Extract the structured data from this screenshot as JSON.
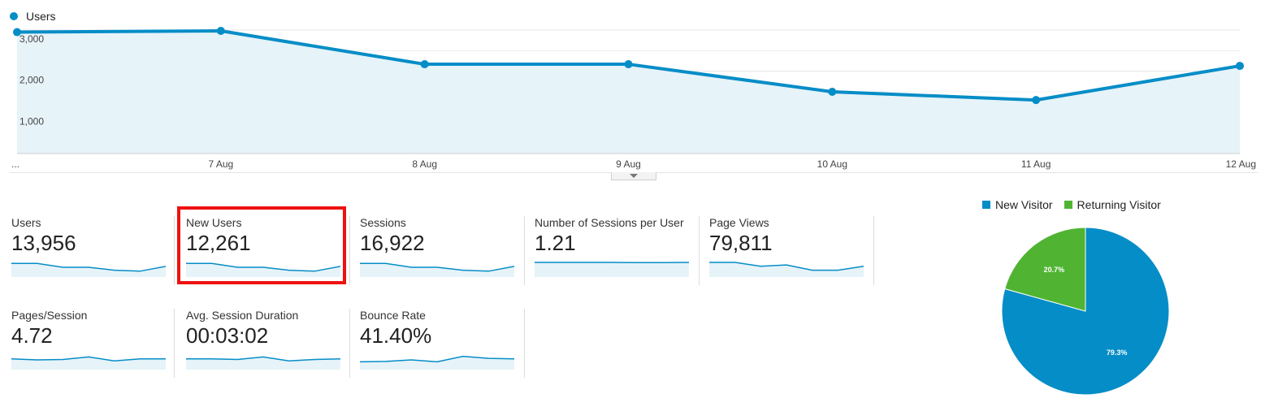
{
  "legend": {
    "label": "Users",
    "color": "#058dc7"
  },
  "chart_data": {
    "type": "area",
    "series": [
      {
        "name": "Users",
        "values": [
          2950,
          2980,
          2170,
          2170,
          1500,
          1300,
          2130
        ]
      }
    ],
    "x_labels": [
      "...",
      "7 Aug",
      "8 Aug",
      "9 Aug",
      "10 Aug",
      "11 Aug",
      "12 Aug"
    ],
    "y_ticks": [
      "3,000",
      "2,000",
      "1,000"
    ],
    "y_tick_values": [
      3000,
      2000,
      1000
    ],
    "ylim": [
      0,
      3000
    ],
    "line_color": "#058dc7",
    "fill_color": "#e6f3f9",
    "grid": true
  },
  "metrics": [
    {
      "label": "Users",
      "value": "13,956",
      "spark": [
        0.7,
        0.7,
        0.5,
        0.5,
        0.35,
        0.3,
        0.55
      ]
    },
    {
      "label": "New Users",
      "value": "12,261",
      "spark": [
        0.7,
        0.7,
        0.5,
        0.5,
        0.35,
        0.3,
        0.55
      ],
      "highlighted": true
    },
    {
      "label": "Sessions",
      "value": "16,922",
      "spark": [
        0.7,
        0.7,
        0.5,
        0.5,
        0.35,
        0.3,
        0.55
      ]
    },
    {
      "label": "Number of Sessions per User",
      "value": "1.21",
      "spark": [
        0.75,
        0.75,
        0.75,
        0.75,
        0.74,
        0.74,
        0.75
      ]
    },
    {
      "label": "Page Views",
      "value": "79,811",
      "spark": [
        0.75,
        0.75,
        0.55,
        0.62,
        0.35,
        0.35,
        0.55
      ]
    },
    {
      "label": "Pages/Session",
      "value": "4.72",
      "spark": [
        0.55,
        0.5,
        0.52,
        0.65,
        0.45,
        0.55,
        0.55
      ]
    },
    {
      "label": "Avg. Session Duration",
      "value": "00:03:02",
      "spark": [
        0.55,
        0.55,
        0.52,
        0.65,
        0.45,
        0.52,
        0.55
      ]
    },
    {
      "label": "Bounce Rate",
      "value": "41.40%",
      "spark": [
        0.4,
        0.42,
        0.5,
        0.4,
        0.68,
        0.58,
        0.55
      ]
    }
  ],
  "pie": {
    "legend": [
      {
        "label": "New Visitor",
        "color": "#058dc7"
      },
      {
        "label": "Returning Visitor",
        "color": "#50b432"
      }
    ],
    "slices": [
      {
        "name": "New Visitor",
        "value": 79.3,
        "label": "79.3%",
        "color": "#058dc7"
      },
      {
        "name": "Returning Visitor",
        "value": 20.7,
        "label": "20.7%",
        "color": "#50b432"
      }
    ]
  }
}
